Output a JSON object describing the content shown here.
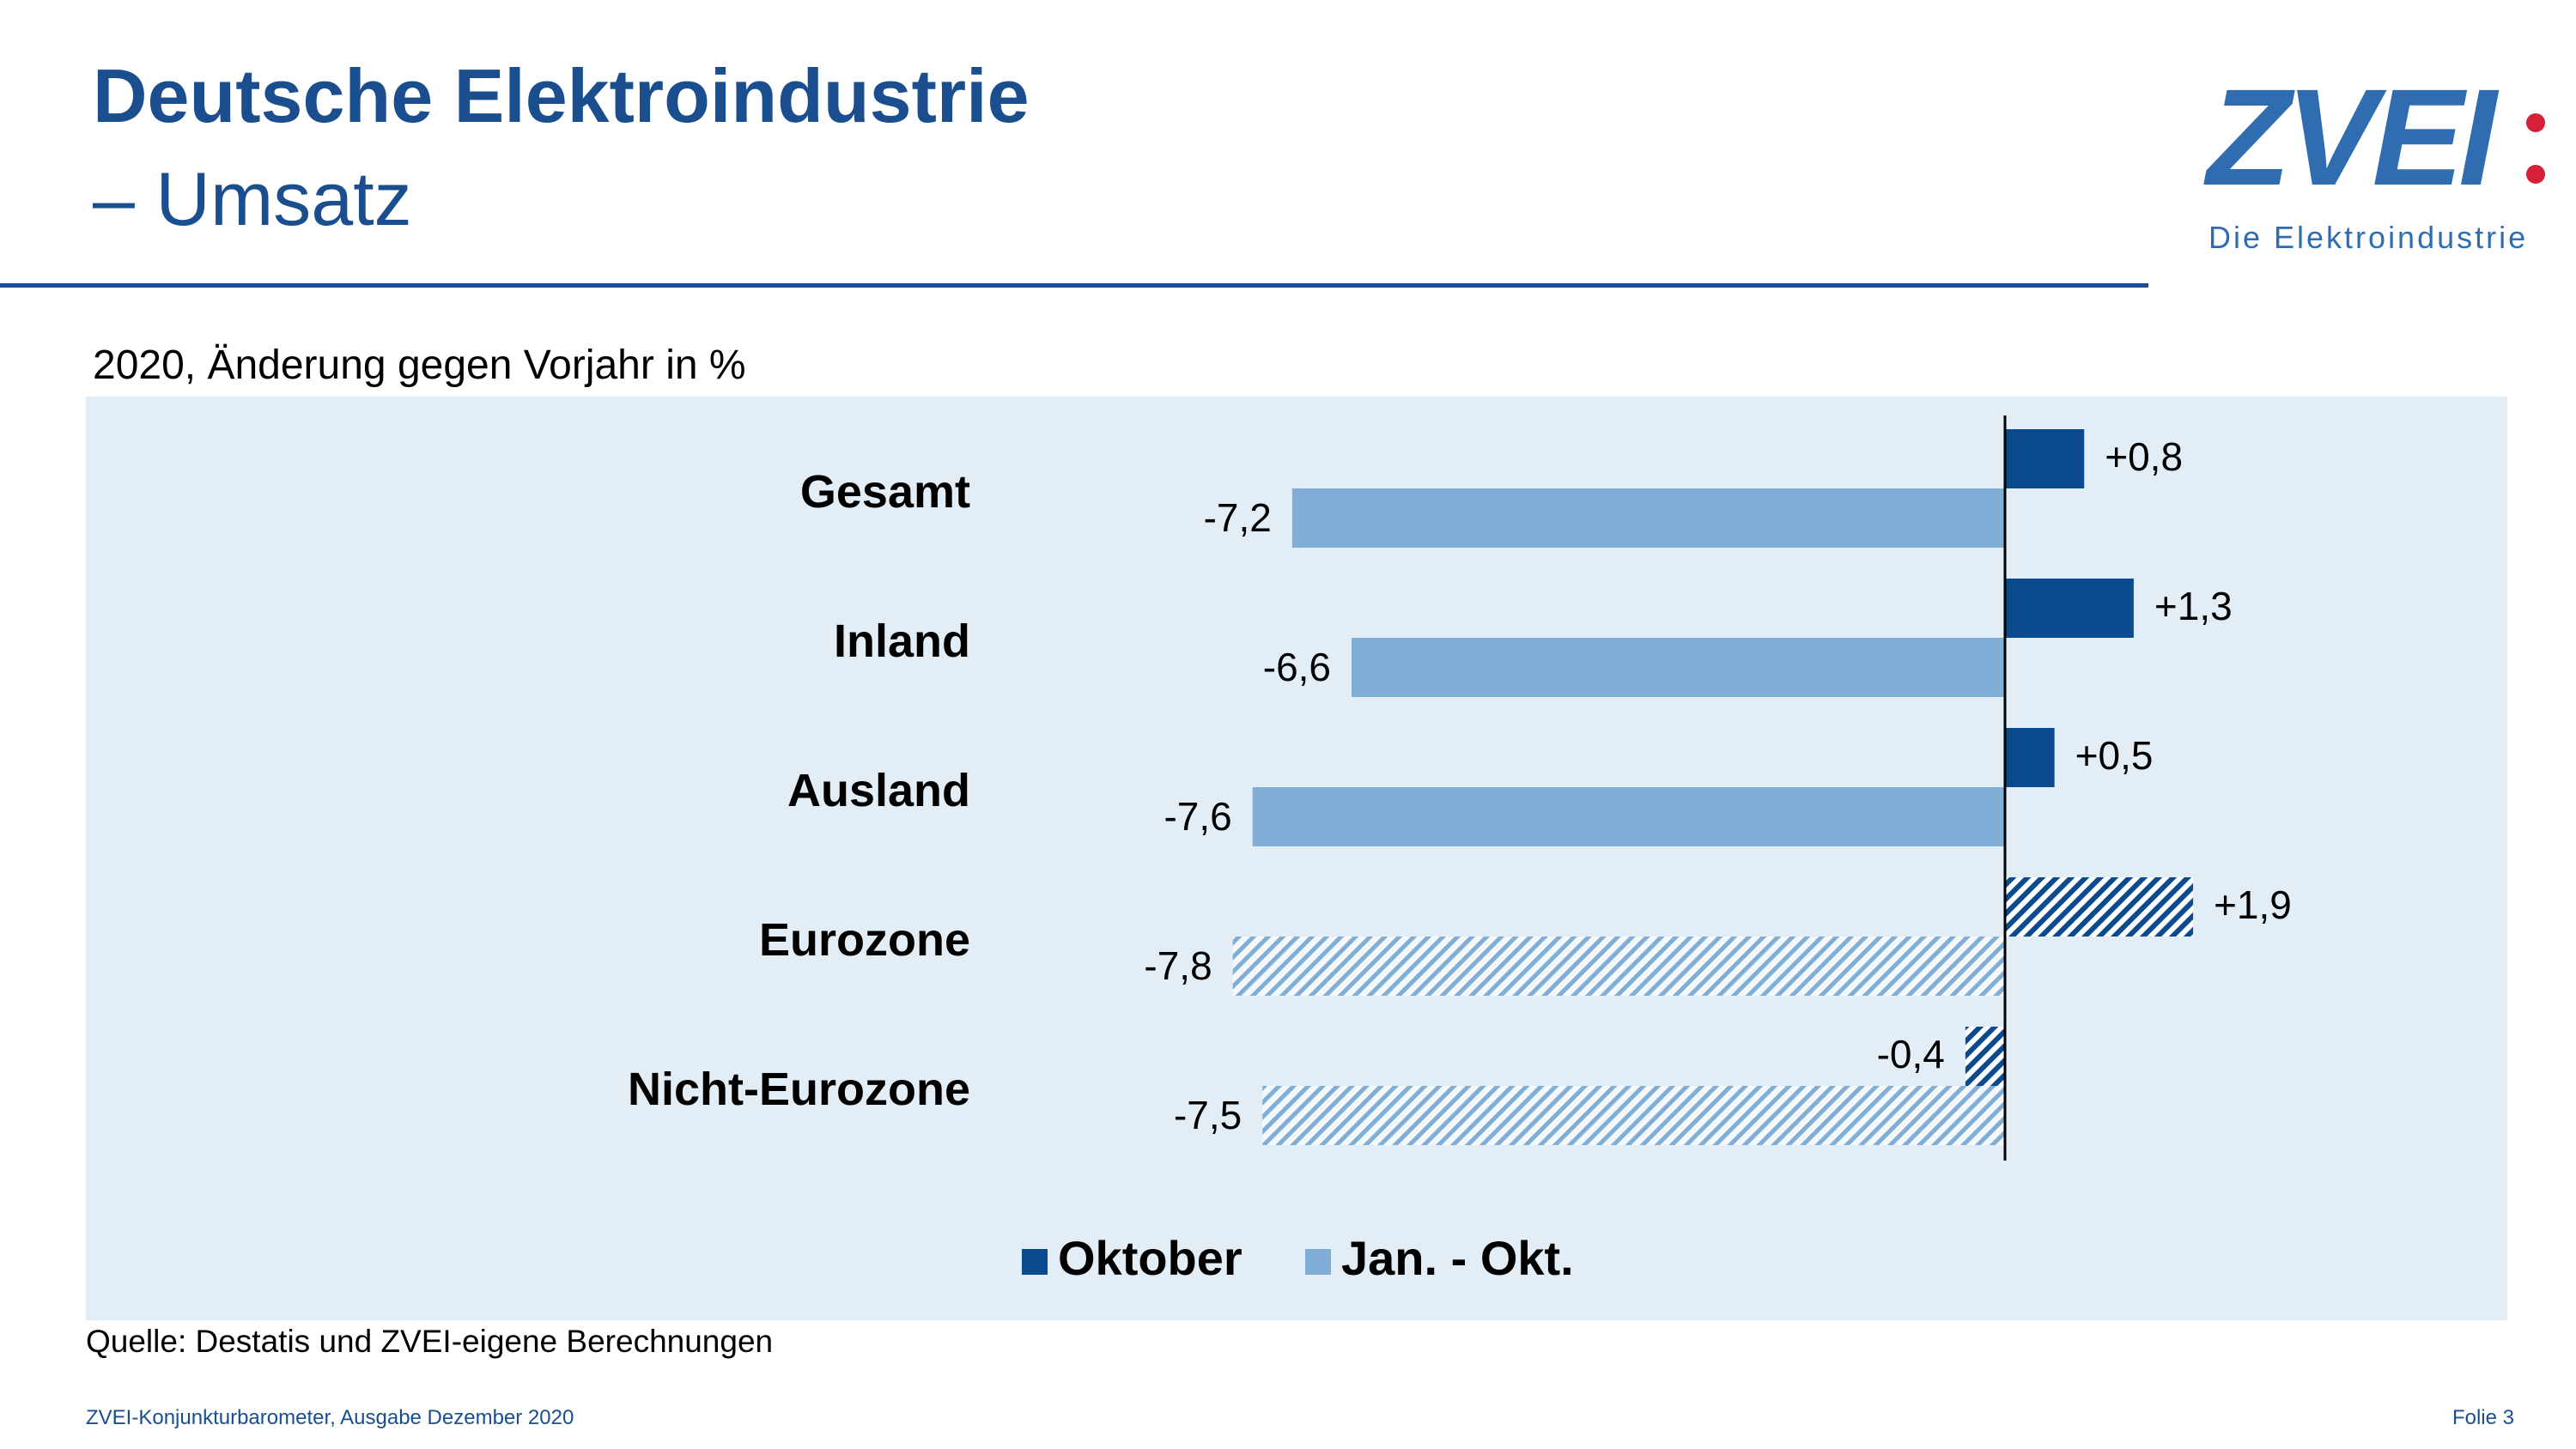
{
  "header": {
    "title": "Deutsche Elektroindustrie",
    "subtitle": "– Umsatz"
  },
  "logo": {
    "name": "ZVEI",
    "tagline": "Die Elektroindustrie"
  },
  "colors": {
    "brand_blue": "#1a4e8f",
    "oktober": "#0b4a8c",
    "jan_okt": "#7fafd6",
    "panel_bg": "#e3edf5",
    "logo_dot": "#d6203a"
  },
  "chart_data": {
    "type": "bar",
    "orientation": "horizontal",
    "subtitle": "2020, Änderung gegen Vorjahr in %",
    "categories": [
      "Gesamt",
      "Inland",
      "Ausland",
      "Eurozone",
      "Nicht-Eurozone"
    ],
    "series": [
      {
        "name": "Oktober",
        "values": [
          0.8,
          1.3,
          0.5,
          1.9,
          -0.4
        ],
        "labels": [
          "+0,8",
          "+1,3",
          "+0,5",
          "+1,9",
          "-0,4"
        ]
      },
      {
        "name": "Jan. - Okt.",
        "values": [
          -7.2,
          -6.6,
          -7.6,
          -7.8,
          -7.5
        ],
        "labels": [
          "-7,2",
          "-6,6",
          "-7,6",
          "-7,8",
          "-7,5"
        ]
      }
    ],
    "hatched_categories": [
      "Eurozone",
      "Nicht-Eurozone"
    ],
    "legend_position": "bottom-center",
    "xlim": [
      -7.8,
      1.9
    ]
  },
  "source": "Quelle: Destatis und ZVEI-eigene Berechnungen",
  "footer": {
    "left": "ZVEI-Konjunkturbarometer, Ausgabe Dezember 2020",
    "right": "Folie 3"
  }
}
